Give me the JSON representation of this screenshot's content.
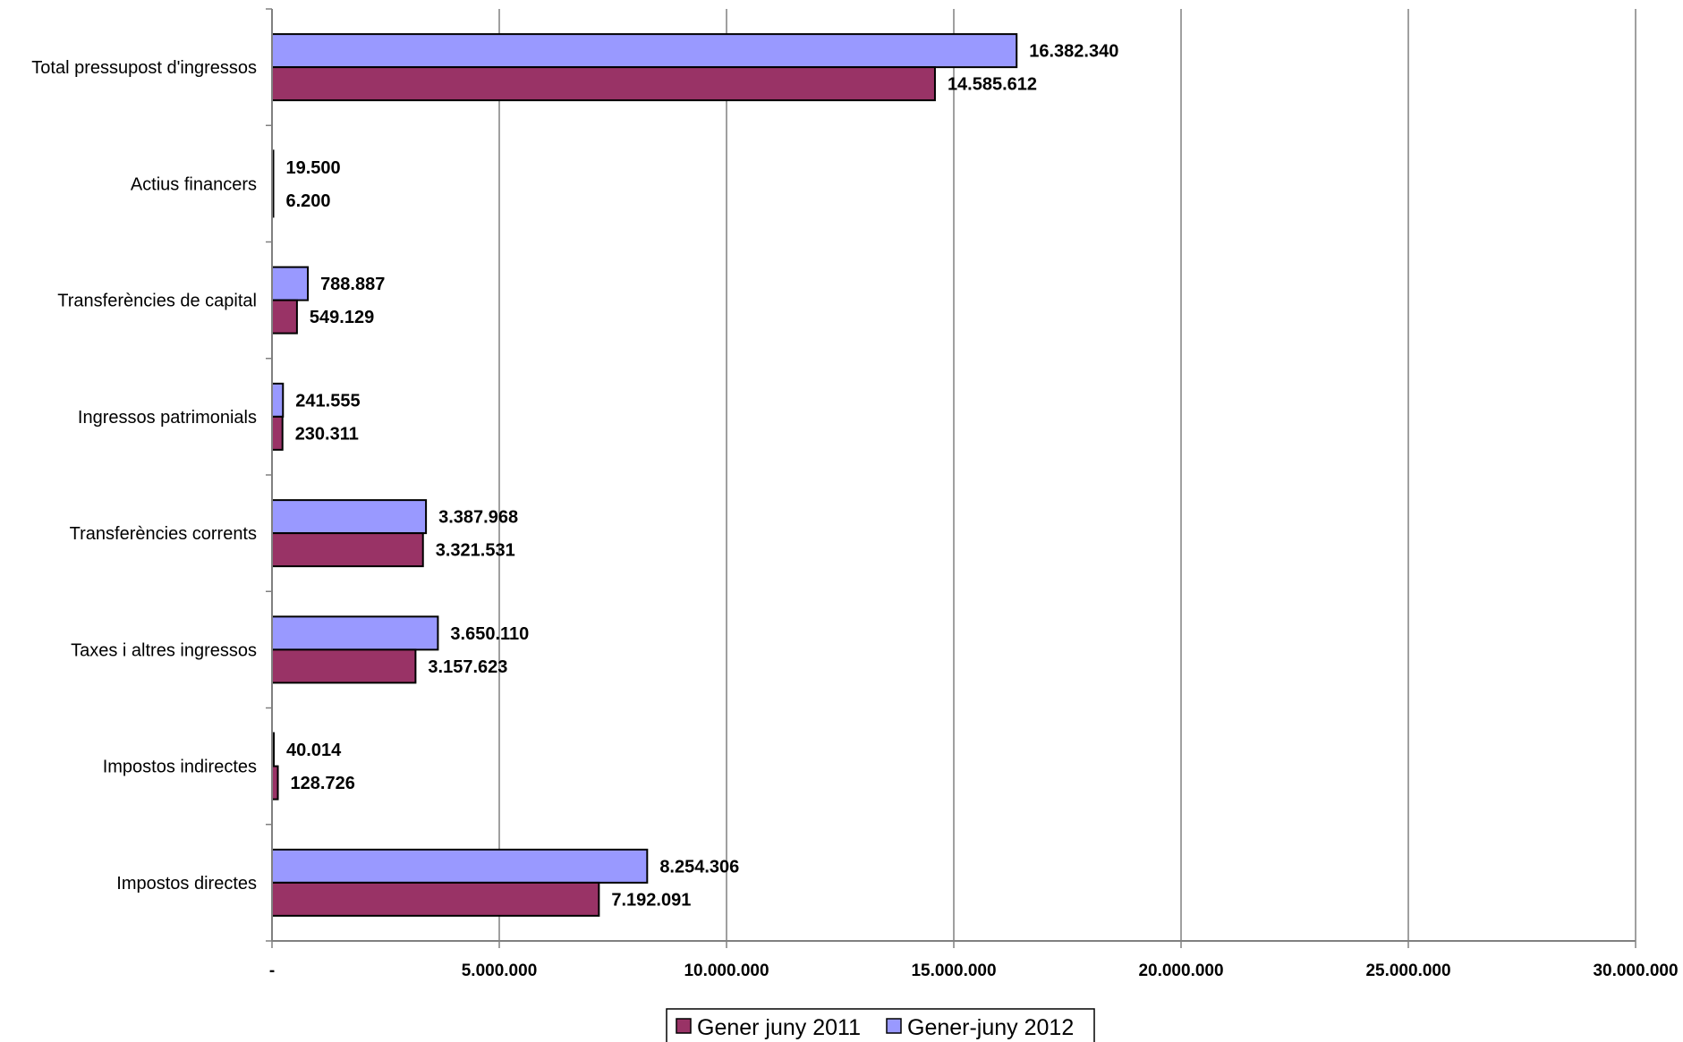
{
  "chart_data": {
    "type": "bar",
    "orientation": "horizontal",
    "categories": [
      "Total pressupost d'ingressos",
      "Actius financers",
      "Transferències de capital",
      "Ingressos patrimonials",
      "Transferències corrents",
      "Taxes i altres ingressos",
      "Impostos indirectes",
      "Impostos directes"
    ],
    "series": [
      {
        "name": "Gener juny 2011",
        "color": "#993366",
        "values": [
          14585612,
          6200,
          549129,
          230311,
          3321531,
          3157623,
          128726,
          7192091
        ],
        "labels": [
          "14.585.612",
          "6.200",
          "549.129",
          "230.311",
          "3.321.531",
          "3.157.623",
          "128.726",
          "7.192.091"
        ]
      },
      {
        "name": "Gener-juny 2012",
        "color": "#9999ff",
        "values": [
          16382340,
          19500,
          788887,
          241555,
          3387968,
          3650110,
          40014,
          8254306
        ],
        "labels": [
          "16.382.340",
          "19.500",
          "788.887",
          "241.555",
          "3.387.968",
          "3.650.110",
          "40.014",
          "8.254.306"
        ]
      }
    ],
    "xlim": [
      0,
      30000000
    ],
    "xticks": [
      0,
      5000000,
      10000000,
      15000000,
      20000000,
      25000000,
      30000000
    ],
    "xtick_labels": [
      "-",
      "5.000.000",
      "10.000.000",
      "15.000.000",
      "20.000.000",
      "25.000.000",
      "30.000.000"
    ],
    "grid": "vertical",
    "legend": "bottom"
  }
}
